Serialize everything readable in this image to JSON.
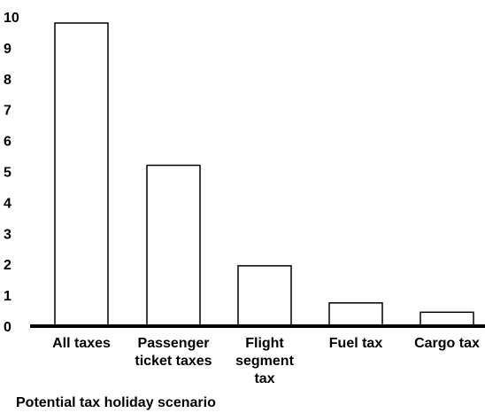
{
  "chart_data": {
    "type": "bar",
    "title": "",
    "xlabel": "Potential tax holiday scenario",
    "ylabel": "",
    "ylim": [
      0,
      10
    ],
    "yticks": [
      "0",
      "1",
      "2",
      "3",
      "4",
      "5",
      "6",
      "7",
      "8",
      "9",
      "10"
    ],
    "grid": false,
    "categories": [
      [
        "All taxes"
      ],
      [
        "Passenger",
        "ticket taxes"
      ],
      [
        "Flight",
        "segment",
        "tax"
      ],
      [
        "Fuel tax"
      ],
      [
        "Cargo tax"
      ]
    ],
    "values": [
      9.8,
      5.2,
      1.95,
      0.75,
      0.45
    ],
    "colors": {
      "bar_fill": "#ffffff",
      "bar_stroke": "#000000",
      "axis": "#000000"
    }
  }
}
